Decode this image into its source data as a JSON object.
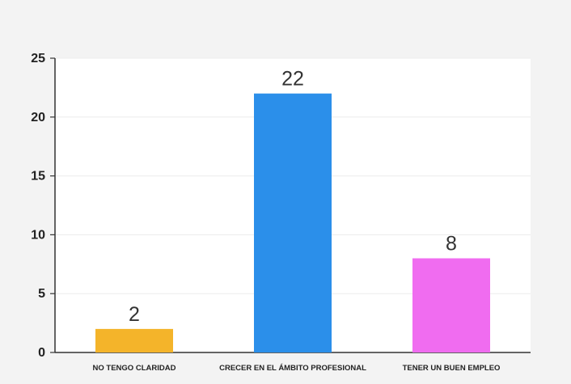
{
  "chart_data": {
    "type": "bar",
    "title": "",
    "xlabel": "",
    "ylabel": "",
    "categories": [
      "NO TENGO CLARIDAD",
      "CRECER EN EL ÁMBITO PROFESIONAL",
      "TENER UN BUEN EMPLEO"
    ],
    "values": [
      2,
      22,
      8
    ],
    "data_labels": [
      "2",
      "22",
      "8"
    ],
    "colors": [
      "#f4b42a",
      "#2b8fea",
      "#f06cf0"
    ],
    "ylim": [
      0,
      25
    ],
    "yticks": [
      0,
      5,
      10,
      15,
      20,
      25
    ],
    "grid": true,
    "legend": "none"
  }
}
